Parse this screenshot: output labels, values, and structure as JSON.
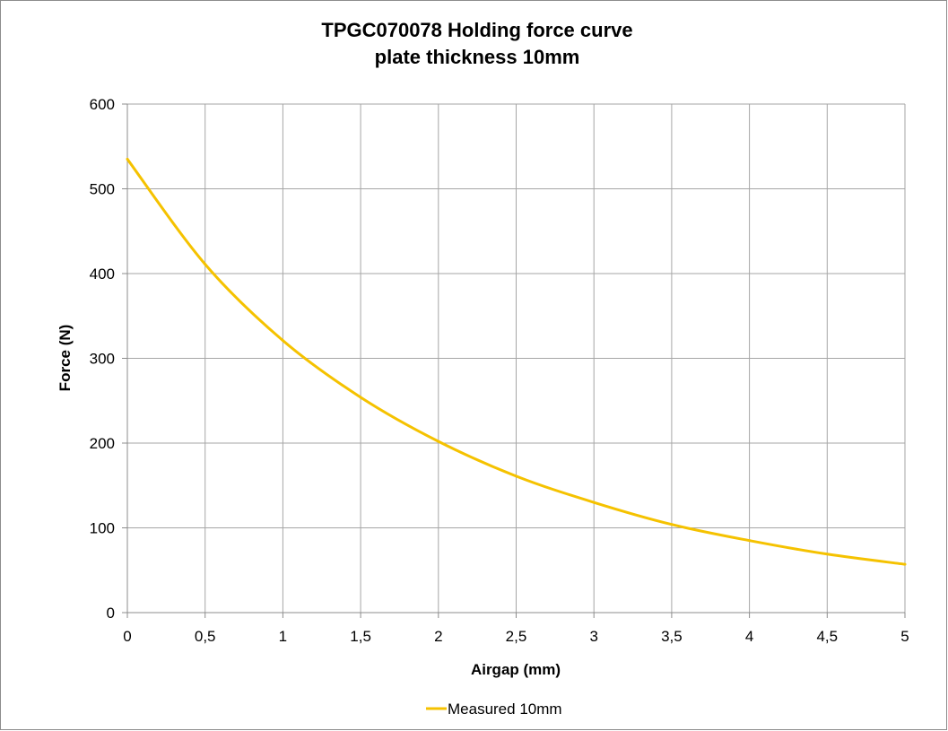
{
  "chart_data": {
    "type": "line",
    "title": "TPGC070078  Holding force curve",
    "subtitle": "plate thickness 10mm",
    "xlabel": "Airgap (mm)",
    "ylabel": "Force (N)",
    "xlim": [
      0,
      5
    ],
    "ylim": [
      0,
      600
    ],
    "x_ticks": [
      "0",
      "0,5",
      "1",
      "1,5",
      "2",
      "2,5",
      "3",
      "3,5",
      "4",
      "4,5",
      "5"
    ],
    "x_tick_values": [
      0,
      0.5,
      1,
      1.5,
      2,
      2.5,
      3,
      3.5,
      4,
      4.5,
      5
    ],
    "y_ticks": [
      "0",
      "100",
      "200",
      "300",
      "400",
      "500",
      "600"
    ],
    "y_tick_values": [
      0,
      100,
      200,
      300,
      400,
      500,
      600
    ],
    "grid": true,
    "legend_position": "bottom",
    "x": [
      0,
      0.5,
      1,
      1.5,
      2,
      2.5,
      3,
      3.5,
      4,
      4.5,
      5
    ],
    "series": [
      {
        "name": "Measured 10mm",
        "color": "#f5c200",
        "values": [
          535,
          411,
          321,
          254,
          202,
          161,
          130,
          104,
          85,
          69,
          57
        ]
      }
    ],
    "colors": {
      "grid": "#a6a6a6",
      "axis": "#8c8c8c",
      "background": "#ffffff"
    }
  }
}
